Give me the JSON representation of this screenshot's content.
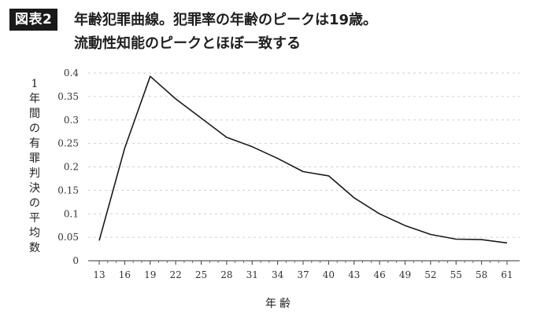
{
  "header": {
    "badge": "図表2",
    "title_line1": "年齢犯罪曲線。犯罪率の年齢のピークは19歳。",
    "title_line2": "流動性知能のピークとほぼ一致する"
  },
  "chart_data": {
    "type": "line",
    "title": "",
    "xlabel": "年齢",
    "ylabel": "1年間の有罪判決の平均数",
    "x": [
      13,
      16,
      19,
      22,
      25,
      28,
      31,
      34,
      37,
      40,
      43,
      46,
      49,
      52,
      55,
      58,
      61
    ],
    "y": [
      0.043,
      0.24,
      0.393,
      0.345,
      0.304,
      0.263,
      0.243,
      0.218,
      0.19,
      0.181,
      0.134,
      0.1,
      0.075,
      0.056,
      0.046,
      0.045,
      0.038
    ],
    "x_ticks": [
      "13",
      "16",
      "19",
      "22",
      "25",
      "28",
      "31",
      "34",
      "37",
      "40",
      "43",
      "46",
      "49",
      "52",
      "55",
      "58",
      "61"
    ],
    "y_ticks": [
      "0",
      "0.05",
      "0.1",
      "0.15",
      "0.2",
      "0.25",
      "0.3",
      "0.35",
      "0.4"
    ],
    "xlim": [
      13,
      61
    ],
    "ylim": [
      0,
      0.4
    ],
    "grid": "horizontal-dashed",
    "line_color": "#1a1a1a",
    "grid_color": "#cfcfcf"
  }
}
